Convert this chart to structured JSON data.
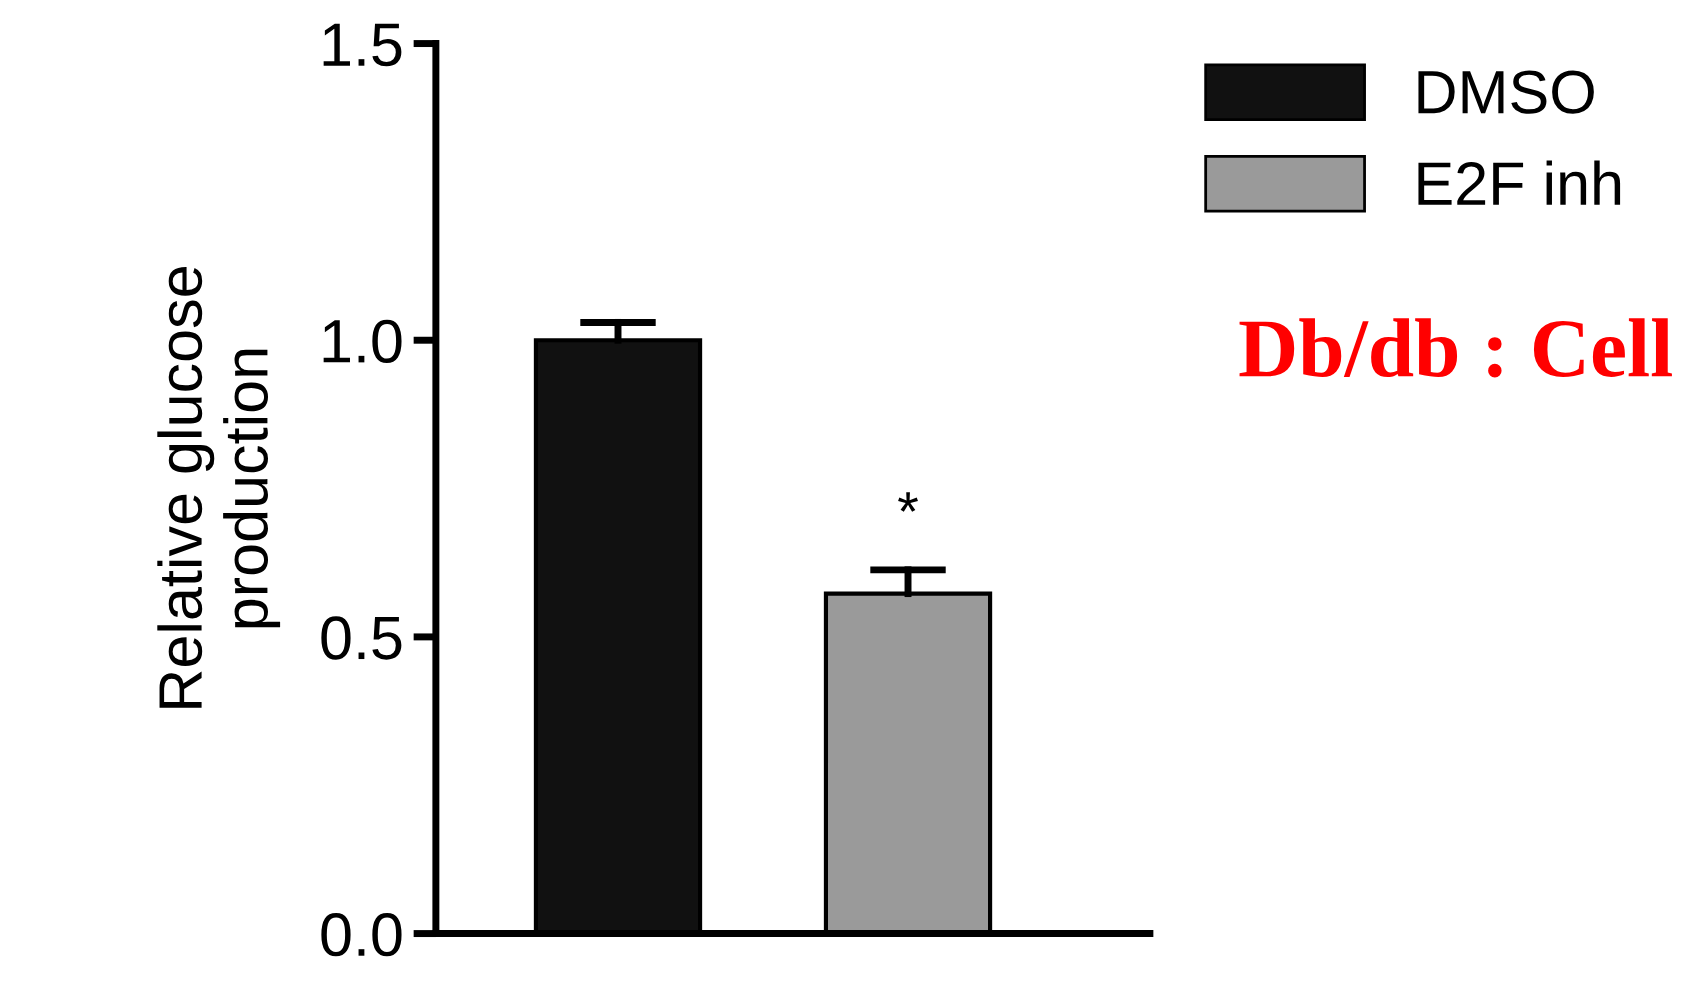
{
  "chart_data": {
    "type": "bar",
    "ylabel": "Relative glucose\nproduction",
    "categories": [
      null,
      null
    ],
    "series": [
      {
        "name": "DMSO",
        "color": "#111111",
        "values": [
          1.0,
          null
        ],
        "errors": [
          [
            1.0,
            1.03
          ],
          null
        ]
      },
      {
        "name": "E2F inh",
        "color": "#9a9a9a",
        "values": [
          null,
          0.573
        ],
        "errors": [
          null,
          [
            0.573,
            0.613
          ]
        ]
      }
    ],
    "ylim": [
      0,
      1.5
    ],
    "yticks": [
      {
        "value": 0,
        "label": "0.0"
      },
      {
        "value": 0.5,
        "label": "0.5"
      },
      {
        "value": 1.0,
        "label": "1.0"
      },
      {
        "value": 1.5,
        "label": "1.5"
      }
    ],
    "tick_labels": "y",
    "grid": false,
    "legend": "top right",
    "annotations": [
      "*",
      "Db/db : Cell"
    ]
  }
}
